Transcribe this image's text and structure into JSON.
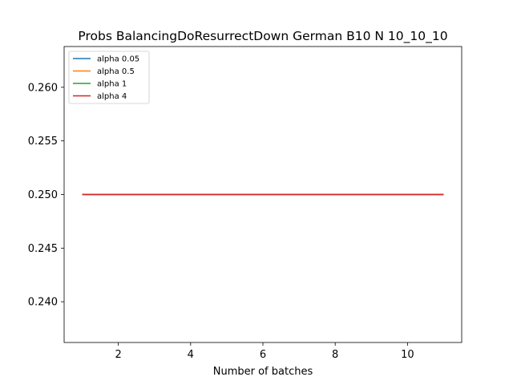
{
  "chart_data": {
    "type": "line",
    "title": "Probs BalancingDoResurrectDown German B10 N 10_10_10",
    "xlabel": "Number of batches",
    "ylabel": "",
    "xlim": [
      0.5,
      11.5
    ],
    "ylim": [
      0.2362,
      0.2638
    ],
    "xticks": [
      2,
      4,
      6,
      8,
      10
    ],
    "yticks": [
      0.24,
      0.245,
      0.25,
      0.255,
      0.26
    ],
    "ytick_labels": [
      "0.240",
      "0.245",
      "0.250",
      "0.255",
      "0.260"
    ],
    "grid": false,
    "legend_position": "top-left",
    "x": [
      1,
      2,
      3,
      4,
      5,
      6,
      7,
      8,
      9,
      10,
      11
    ],
    "series": [
      {
        "name": "alpha 0.05",
        "color": "#1f77b4",
        "values": [
          0.25,
          0.25,
          0.25,
          0.25,
          0.25,
          0.25,
          0.25,
          0.25,
          0.25,
          0.25,
          0.25
        ]
      },
      {
        "name": "alpha 0.5",
        "color": "#ff7f0e",
        "values": [
          0.25,
          0.25,
          0.25,
          0.25,
          0.25,
          0.25,
          0.25,
          0.25,
          0.25,
          0.25,
          0.25
        ]
      },
      {
        "name": "alpha 1",
        "color": "#2ca02c",
        "values": [
          0.25,
          0.25,
          0.25,
          0.25,
          0.25,
          0.25,
          0.25,
          0.25,
          0.25,
          0.25,
          0.25
        ]
      },
      {
        "name": "alpha 4",
        "color": "#d62728",
        "values": [
          0.25,
          0.25,
          0.25,
          0.25,
          0.25,
          0.25,
          0.25,
          0.25,
          0.25,
          0.25,
          0.25
        ]
      }
    ]
  }
}
